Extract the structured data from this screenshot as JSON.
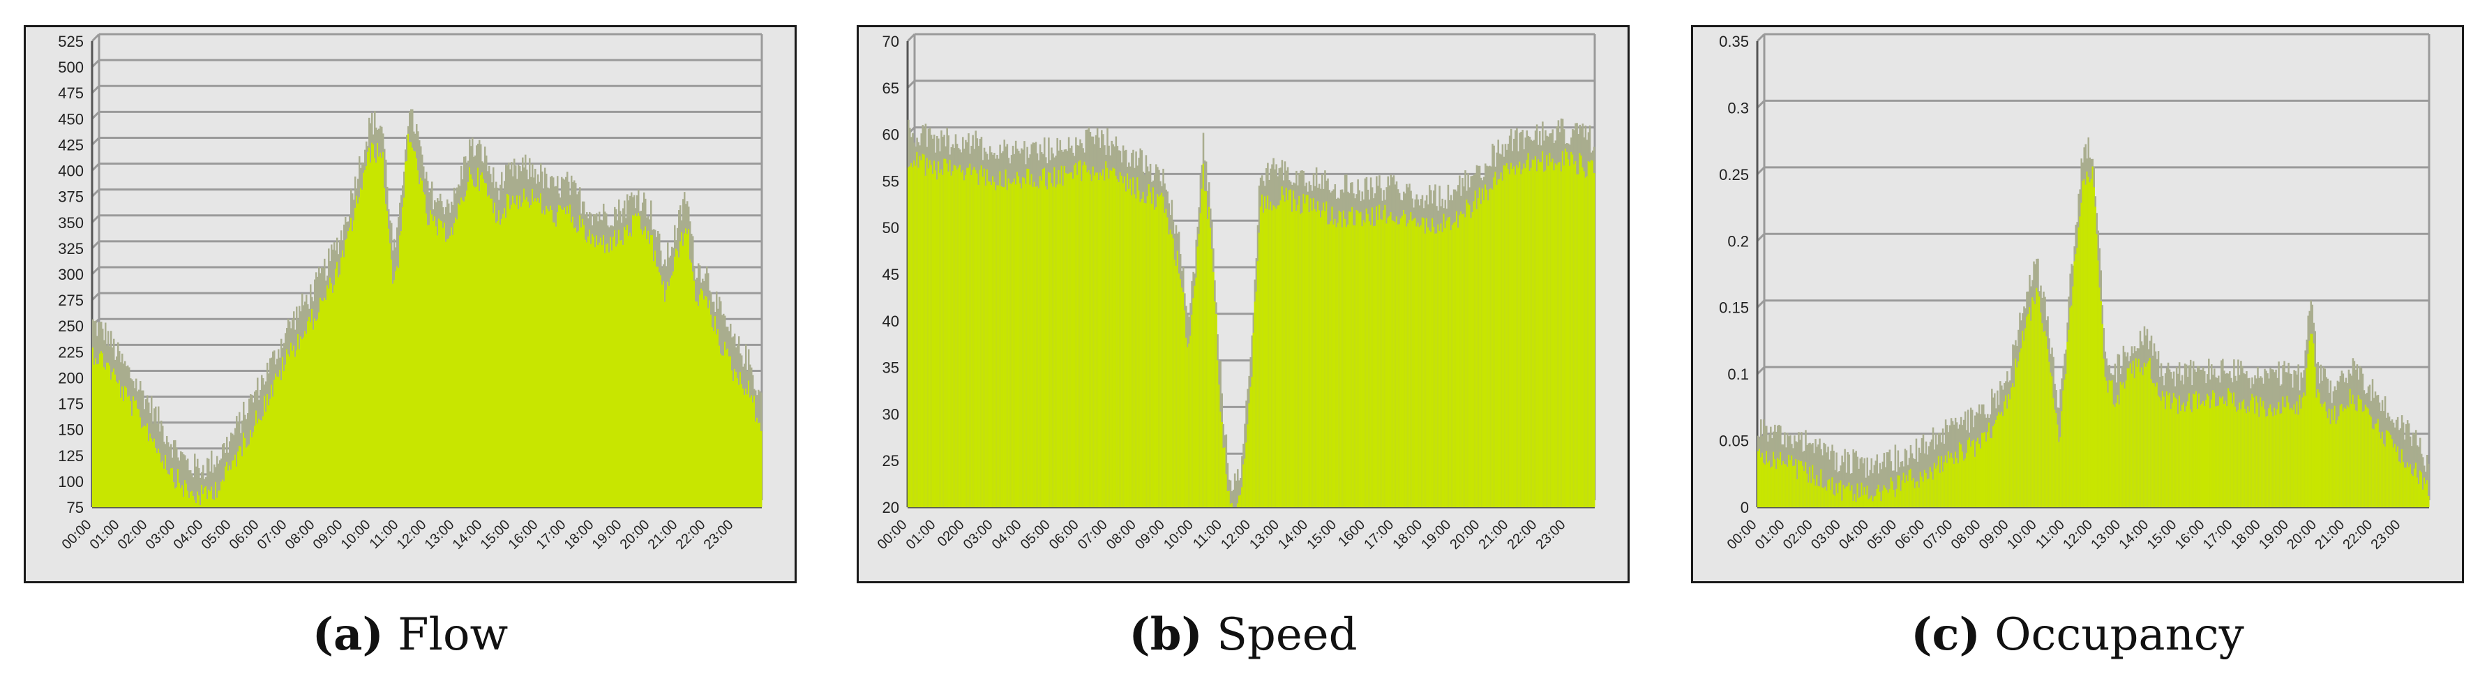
{
  "captions": [
    {
      "label": "(a)",
      "text": "Flow"
    },
    {
      "label": "(b)",
      "text": "Speed"
    },
    {
      "label": "(c)",
      "text": "Occupancy"
    }
  ],
  "colors": {
    "fill": "#c8e600",
    "peak": "#a9ad8e",
    "grid": "#9a9a9a",
    "background": "#e6e6e6",
    "frame": "#1a1a1a"
  },
  "chart_data": [
    {
      "type": "area",
      "title": "",
      "xlabel": "",
      "ylabel": "",
      "ylim": [
        75,
        525
      ],
      "yticks": [
        "75",
        "100",
        "125",
        "150",
        "175",
        "200",
        "225",
        "250",
        "275",
        "300",
        "325",
        "350",
        "375",
        "400",
        "425",
        "450",
        "475",
        "500",
        "525"
      ],
      "x": [
        "00:00",
        "01:00",
        "02:00",
        "03:00",
        "04:00",
        "05:00",
        "06:00",
        "07:00",
        "08:00",
        "09:00",
        "10:00",
        "11:00",
        "12:00",
        "13:00",
        "14:00",
        "15:00",
        "16:00",
        "17:00",
        "18:00",
        "19:00",
        "20:00",
        "21:00",
        "22:00",
        "23:00"
      ],
      "profile": [
        [
          0,
          250
        ],
        [
          0.5,
          240
        ],
        [
          1,
          215
        ],
        [
          1.5,
          195
        ],
        [
          2,
          175
        ],
        [
          2.5,
          150
        ],
        [
          3,
          128
        ],
        [
          3.5,
          112
        ],
        [
          4,
          110
        ],
        [
          4.5,
          120
        ],
        [
          5,
          140
        ],
        [
          5.5,
          165
        ],
        [
          6,
          190
        ],
        [
          6.5,
          215
        ],
        [
          7,
          245
        ],
        [
          7.5,
          265
        ],
        [
          8,
          285
        ],
        [
          8.5,
          310
        ],
        [
          9,
          340
        ],
        [
          9.5,
          395
        ],
        [
          10,
          445
        ],
        [
          10.4,
          440
        ],
        [
          10.8,
          315
        ],
        [
          11,
          345
        ],
        [
          11.3,
          450
        ],
        [
          11.6,
          440
        ],
        [
          12,
          380
        ],
        [
          12.5,
          365
        ],
        [
          13,
          370
        ],
        [
          13.5,
          420
        ],
        [
          14,
          415
        ],
        [
          14.5,
          380
        ],
        [
          15,
          395
        ],
        [
          15.5,
          400
        ],
        [
          16,
          395
        ],
        [
          16.5,
          380
        ],
        [
          17,
          385
        ],
        [
          17.5,
          370
        ],
        [
          18,
          355
        ],
        [
          18.5,
          355
        ],
        [
          19,
          360
        ],
        [
          19.5,
          375
        ],
        [
          20,
          360
        ],
        [
          20.5,
          305
        ],
        [
          21,
          345
        ],
        [
          21.3,
          375
        ],
        [
          21.6,
          305
        ],
        [
          22,
          300
        ],
        [
          22.5,
          260
        ],
        [
          23,
          230
        ],
        [
          23.5,
          215
        ],
        [
          24,
          175
        ]
      ]
    },
    {
      "type": "area",
      "title": "",
      "xlabel": "",
      "ylabel": "",
      "ylim": [
        20,
        70
      ],
      "yticks": [
        "20",
        "25",
        "30",
        "35",
        "40",
        "45",
        "50",
        "55",
        "60",
        "65",
        "70"
      ],
      "x": [
        "00:00",
        "01:00",
        "0200",
        "03:00",
        "04:00",
        "05:00",
        "06:00",
        "07:00",
        "08:00",
        "09:00",
        "10:00",
        "11:00",
        "12:00",
        "13:00",
        "14:00",
        "15:00",
        "1600",
        "17:00",
        "18:00",
        "19:00",
        "20:00",
        "21:00",
        "22:00",
        "23:00"
      ],
      "profile": [
        [
          0,
          60
        ],
        [
          1,
          59
        ],
        [
          2,
          59
        ],
        [
          3,
          58
        ],
        [
          4,
          58
        ],
        [
          5,
          58
        ],
        [
          6,
          59
        ],
        [
          7,
          59
        ],
        [
          8,
          57
        ],
        [
          8.5,
          56
        ],
        [
          9,
          55
        ],
        [
          9.5,
          48
        ],
        [
          9.8,
          40
        ],
        [
          10,
          45
        ],
        [
          10.3,
          59
        ],
        [
          10.6,
          52
        ],
        [
          11,
          30
        ],
        [
          11.3,
          22
        ],
        [
          11.6,
          23
        ],
        [
          12,
          36
        ],
        [
          12.3,
          55
        ],
        [
          13,
          56
        ],
        [
          14,
          55
        ],
        [
          15,
          54
        ],
        [
          16,
          54
        ],
        [
          17,
          54
        ],
        [
          18,
          53
        ],
        [
          19,
          53
        ],
        [
          20,
          56
        ],
        [
          21,
          59
        ],
        [
          22,
          60
        ],
        [
          23,
          60
        ],
        [
          24,
          59
        ]
      ]
    },
    {
      "type": "area",
      "title": "",
      "xlabel": "",
      "ylabel": "",
      "ylim": [
        0,
        0.35
      ],
      "yticks": [
        "0",
        "0.05",
        "0.1",
        "0.15",
        "0.2",
        "0.25",
        "0.3",
        "0.35"
      ],
      "x": [
        "00:00",
        "01:00",
        "02:00",
        "03:00",
        "04:00",
        "05:00",
        "06:00",
        "07:00",
        "08:00",
        "09:00",
        "10:00",
        "11:00",
        "12:00",
        "13:00",
        "14:00",
        "15:00",
        "16:00",
        "17:00",
        "18:00",
        "19:00",
        "20:00",
        "21:00",
        "22:00",
        "23:00"
      ],
      "profile": [
        [
          0,
          0.058
        ],
        [
          1,
          0.052
        ],
        [
          2,
          0.043
        ],
        [
          3,
          0.033
        ],
        [
          4,
          0.028
        ],
        [
          5,
          0.035
        ],
        [
          6,
          0.045
        ],
        [
          7,
          0.058
        ],
        [
          8,
          0.068
        ],
        [
          8.5,
          0.08
        ],
        [
          9,
          0.1
        ],
        [
          9.5,
          0.15
        ],
        [
          10,
          0.18
        ],
        [
          10.4,
          0.13
        ],
        [
          10.8,
          0.07
        ],
        [
          11.2,
          0.17
        ],
        [
          11.6,
          0.26
        ],
        [
          12,
          0.27
        ],
        [
          12.4,
          0.12
        ],
        [
          12.8,
          0.1
        ],
        [
          13.5,
          0.125
        ],
        [
          14,
          0.125
        ],
        [
          14.5,
          0.1
        ],
        [
          15,
          0.098
        ],
        [
          16,
          0.1
        ],
        [
          17,
          0.1
        ],
        [
          18,
          0.095
        ],
        [
          19,
          0.098
        ],
        [
          19.5,
          0.095
        ],
        [
          19.8,
          0.16
        ],
        [
          20,
          0.1
        ],
        [
          20.5,
          0.085
        ],
        [
          21,
          0.1
        ],
        [
          21.5,
          0.1
        ],
        [
          22,
          0.085
        ],
        [
          22.5,
          0.07
        ],
        [
          23,
          0.06
        ],
        [
          23.5,
          0.05
        ],
        [
          24,
          0.03
        ]
      ]
    }
  ]
}
